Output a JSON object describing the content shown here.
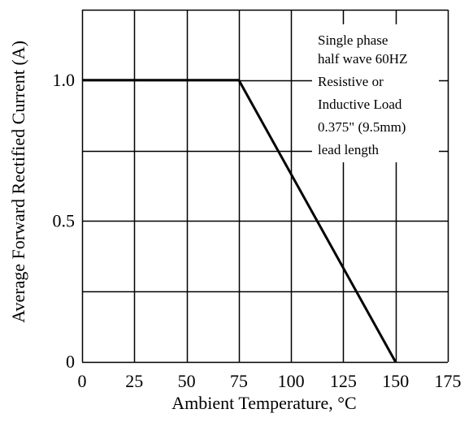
{
  "chart_data": {
    "type": "line",
    "title": "",
    "xlabel": "Ambient Temperature, °C",
    "ylabel": "Average Forward Rectified Current (A)",
    "xlim": [
      0,
      175
    ],
    "ylim": [
      0,
      1.25
    ],
    "x_ticks": [
      0,
      25,
      50,
      75,
      100,
      125,
      150,
      175
    ],
    "x_tick_labels": [
      "0",
      "25",
      "50",
      "75",
      "100",
      "125",
      "150",
      "175"
    ],
    "y_gridlines": [
      0,
      0.25,
      0.5,
      0.75,
      1.0,
      1.25
    ],
    "y_ticks": [
      0,
      0.5,
      1.0
    ],
    "y_tick_labels": [
      "0",
      "0.5",
      "1.0"
    ],
    "grid": true,
    "series": [
      {
        "x": [
          0,
          75,
          150
        ],
        "y": [
          1.0,
          1.0,
          0
        ]
      }
    ],
    "annotation": [
      "Single phase",
      "half  wave 60HZ",
      "Resistive or",
      "Inductive Load",
      "0.375\" (9.5mm)",
      "lead length"
    ],
    "colors": {
      "line": "#000000",
      "grid": "#000000",
      "background": "#ffffff"
    }
  }
}
